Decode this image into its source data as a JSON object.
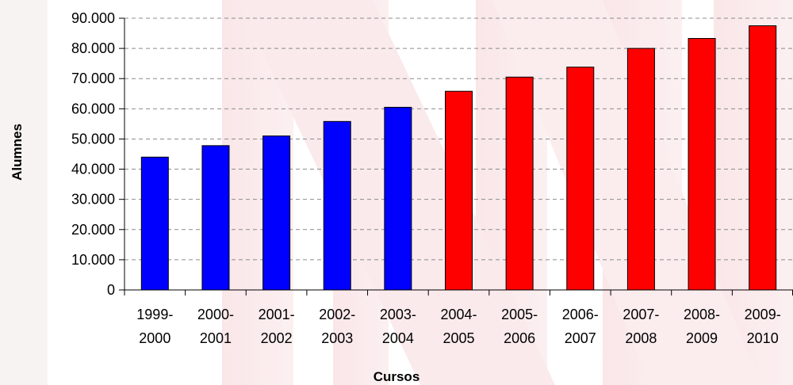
{
  "chart_data": {
    "type": "bar",
    "title": "",
    "xlabel": "Cursos",
    "ylabel": "Alumnes",
    "ylim": [
      0,
      90000
    ],
    "yticks": [
      0,
      10000,
      20000,
      30000,
      40000,
      50000,
      60000,
      70000,
      80000,
      90000
    ],
    "ytick_labels": [
      "0",
      "10.000",
      "20.000",
      "30.000",
      "40.000",
      "50.000",
      "60.000",
      "70.000",
      "80.000",
      "90.000"
    ],
    "grid": "horizontal-dashed",
    "legend": "none",
    "categories": [
      [
        "1999-",
        "2000"
      ],
      [
        "2000-",
        "2001"
      ],
      [
        "2001-",
        "2002"
      ],
      [
        "2002-",
        "2003"
      ],
      [
        "2003-",
        "2004"
      ],
      [
        "2004-",
        "2005"
      ],
      [
        "2005-",
        "2006"
      ],
      [
        "2006-",
        "2007"
      ],
      [
        "2007-",
        "2008"
      ],
      [
        "2008-",
        "2009"
      ],
      [
        "2009-",
        "2010"
      ]
    ],
    "values": [
      44000,
      47800,
      51000,
      55800,
      60500,
      65800,
      70500,
      73800,
      80000,
      83300,
      87500
    ],
    "bar_colors": [
      "#0000ff",
      "#0000ff",
      "#0000ff",
      "#0000ff",
      "#0000ff",
      "#ff0000",
      "#ff0000",
      "#ff0000",
      "#ff0000",
      "#ff0000",
      "#ff0000"
    ]
  }
}
